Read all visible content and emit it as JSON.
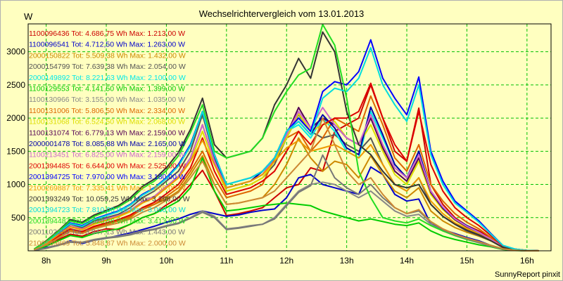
{
  "chart_data": {
    "type": "line",
    "title": "Wechselrichtervergleich vom 13.01.2013",
    "ylabel": "W",
    "credit": "SunnyReport pinxit",
    "x_ticks": [
      "8h",
      "9h",
      "10h",
      "11h",
      "12h",
      "13h",
      "14h",
      "15h",
      "16h"
    ],
    "y_ticks": [
      500,
      1000,
      1500,
      2000,
      2500,
      3000
    ],
    "xlim": [
      7.7,
      16.4
    ],
    "ylim": [
      0,
      3420
    ],
    "grid": true,
    "legend_position": "top-left",
    "x": [
      7.8,
      8.0,
      8.2,
      8.4,
      8.6,
      8.8,
      9.0,
      9.2,
      9.4,
      9.6,
      9.8,
      10.0,
      10.2,
      10.4,
      10.6,
      10.8,
      11.0,
      11.2,
      11.4,
      11.6,
      11.8,
      12.0,
      12.2,
      12.4,
      12.6,
      12.8,
      13.0,
      13.2,
      13.4,
      13.6,
      13.8,
      14.0,
      14.2,
      14.4,
      14.6,
      14.8,
      15.0,
      15.2,
      15.4,
      15.6,
      15.8,
      16.0,
      16.2
    ],
    "series": [
      {
        "name": "1100096436 Tot: 4.686,75 Wh Max: 1.213,00 W",
        "color": "#cc0000",
        "values": [
          15,
          80,
          170,
          250,
          220,
          290,
          330,
          320,
          400,
          500,
          560,
          690,
          800,
          1000,
          1213,
          900,
          530,
          560,
          600,
          650,
          800,
          950,
          1000,
          1250,
          1200,
          1800,
          1900,
          2000,
          2500,
          2000,
          1500,
          1350,
          2150,
          1000,
          700,
          500,
          380,
          300,
          200,
          50,
          20,
          5,
          0
        ]
      },
      {
        "name": "1100096541 Tot: 4.712,50 Wh Max: 1.263,00 W",
        "color": "#0000cc",
        "values": [
          15,
          50,
          80,
          150,
          110,
          160,
          190,
          230,
          270,
          320,
          370,
          430,
          480,
          550,
          600,
          560,
          520,
          540,
          580,
          610,
          630,
          800,
          1100,
          1150,
          1000,
          950,
          900,
          850,
          1263,
          1150,
          850,
          750,
          780,
          400,
          320,
          260,
          200,
          150,
          80,
          30,
          10,
          0,
          0
        ]
      },
      {
        "name": "2000150822 Tot: 5.509,38 Wh Max: 1.432,00 W",
        "color": "#cc8800",
        "values": [
          15,
          90,
          200,
          300,
          260,
          340,
          380,
          420,
          500,
          650,
          700,
          780,
          900,
          1150,
          1432,
          1000,
          700,
          720,
          760,
          800,
          1000,
          1300,
          1700,
          1400,
          1200,
          1350,
          1300,
          1100,
          1432,
          1150,
          900,
          800,
          950,
          600,
          450,
          350,
          280,
          220,
          150,
          50,
          20,
          5,
          0
        ]
      },
      {
        "name": "2000154799 Tot: 7.639,38 Wh Max: 2.054,00 W",
        "color": "#555555",
        "values": [
          15,
          120,
          250,
          400,
          350,
          450,
          500,
          550,
          650,
          800,
          900,
          1050,
          1200,
          1500,
          2054,
          1400,
          900,
          950,
          1000,
          1100,
          1300,
          1700,
          2054,
          1800,
          1700,
          1750,
          1600,
          1500,
          1700,
          1300,
          1000,
          900,
          1100,
          700,
          520,
          400,
          300,
          230,
          150,
          50,
          20,
          5,
          0
        ]
      },
      {
        "name": "2000149892 Tot: 8.221,63 Wh Max: 2.100,00 W",
        "color": "#00e8e8",
        "values": [
          20,
          130,
          270,
          420,
          380,
          480,
          540,
          600,
          700,
          850,
          950,
          1100,
          1300,
          1600,
          2100,
          1450,
          950,
          1000,
          1050,
          1200,
          1400,
          1800,
          1900,
          1700,
          2000,
          1800,
          1500,
          1400,
          2100,
          1700,
          1300,
          1100,
          1500,
          900,
          650,
          480,
          380,
          280,
          160,
          60,
          20,
          5,
          0
        ]
      },
      {
        "name": "1100129553 Tot: 4.141,50 Wh Max: 1.399,00 W",
        "color": "#00cc00",
        "values": [
          10,
          70,
          150,
          230,
          200,
          260,
          300,
          330,
          400,
          500,
          560,
          650,
          750,
          950,
          1399,
          900,
          600,
          620,
          650,
          680,
          700,
          720,
          700,
          680,
          600,
          550,
          500,
          450,
          480,
          440,
          400,
          380,
          420,
          300,
          220,
          170,
          130,
          90,
          60,
          20,
          5,
          0,
          0
        ]
      },
      {
        "name": "1100130966 Tot: 3.155,00 Wh Max: 1.035,00 W",
        "color": "#888888",
        "values": [
          5,
          40,
          90,
          140,
          130,
          170,
          200,
          220,
          250,
          300,
          330,
          380,
          420,
          500,
          600,
          520,
          330,
          350,
          380,
          400,
          500,
          700,
          900,
          1000,
          1035,
          1000,
          900,
          800,
          900,
          750,
          600,
          520,
          550,
          400,
          300,
          230,
          170,
          120,
          70,
          25,
          8,
          0,
          0
        ]
      },
      {
        "name": "1100131006 Tot: 5.806,50 Wh Max: 2.334,00 W",
        "color": "#dd6600",
        "values": [
          15,
          100,
          220,
          320,
          280,
          360,
          400,
          450,
          520,
          620,
          700,
          820,
          950,
          1200,
          1500,
          1100,
          800,
          850,
          900,
          1000,
          1400,
          1700,
          1800,
          1500,
          1700,
          2000,
          1900,
          1800,
          2334,
          1900,
          1400,
          1200,
          1600,
          1000,
          750,
          560,
          430,
          330,
          200,
          60,
          20,
          5,
          0
        ]
      },
      {
        "name": "1100131068 Tot: 6.524,50 Wh Max: 2.068,00 W",
        "color": "#dddd00",
        "values": [
          15,
          110,
          230,
          360,
          320,
          400,
          460,
          510,
          590,
          720,
          800,
          950,
          1100,
          1350,
          1800,
          1300,
          900,
          950,
          1000,
          1100,
          1350,
          1700,
          2068,
          1800,
          1900,
          1950,
          1700,
          1600,
          1900,
          1500,
          1150,
          1000,
          1350,
          850,
          620,
          460,
          350,
          270,
          170,
          60,
          20,
          5,
          0
        ]
      },
      {
        "name": "1100131074 Tot: 6.779,13 Wh Max: 2.159,00 W",
        "color": "#550055",
        "values": [
          15,
          110,
          240,
          370,
          330,
          420,
          480,
          530,
          610,
          740,
          820,
          970,
          1120,
          1400,
          1900,
          1350,
          950,
          1000,
          1050,
          1150,
          1400,
          1750,
          2159,
          1850,
          2000,
          1900,
          1700,
          1600,
          2000,
          1550,
          1200,
          1050,
          1400,
          880,
          640,
          470,
          360,
          280,
          170,
          60,
          20,
          5,
          0
        ]
      },
      {
        "name": "2000001478 Tot: 8.085,88 Wh Max: 2.165,00 W",
        "color": "#0000aa",
        "values": [
          20,
          130,
          270,
          410,
          370,
          470,
          530,
          590,
          690,
          840,
          940,
          1090,
          1280,
          1580,
          2100,
          1440,
          950,
          1000,
          1050,
          1200,
          1400,
          1800,
          1950,
          1750,
          2050,
          1850,
          1550,
          1450,
          2165,
          1750,
          1300,
          1100,
          1500,
          900,
          650,
          480,
          380,
          280,
          160,
          60,
          20,
          5,
          0
        ]
      },
      {
        "name": "1100213451 Tot: 6.825,00 Wh Max: 2.159,00 W",
        "color": "#cc66cc",
        "values": [
          15,
          110,
          240,
          370,
          330,
          420,
          480,
          530,
          610,
          740,
          820,
          970,
          1120,
          1400,
          1900,
          1350,
          950,
          1000,
          1050,
          1150,
          1400,
          1750,
          2100,
          1850,
          2159,
          1900,
          1700,
          1600,
          2050,
          1600,
          1250,
          1100,
          1450,
          900,
          660,
          480,
          370,
          280,
          170,
          60,
          20,
          5,
          0
        ]
      },
      {
        "name": "2001394485 Tot: 6.644,00 Wh Max: 2.525,00 W",
        "color": "#dd0000",
        "values": [
          15,
          100,
          220,
          330,
          290,
          370,
          420,
          470,
          540,
          650,
          730,
          860,
          1000,
          1250,
          1700,
          1200,
          850,
          900,
          950,
          1050,
          1200,
          1500,
          1800,
          1600,
          1900,
          2000,
          2000,
          2100,
          2525,
          2000,
          1600,
          1350,
          2100,
          1300,
          900,
          650,
          500,
          380,
          230,
          70,
          25,
          5,
          0
        ]
      },
      {
        "name": "2001394725 Tot: 7.970,00 Wh Max: 3.180,00 W",
        "color": "#0000ff",
        "values": [
          20,
          130,
          270,
          420,
          380,
          480,
          540,
          600,
          700,
          850,
          950,
          1100,
          1300,
          1600,
          2100,
          1450,
          1000,
          1050,
          1100,
          1200,
          1400,
          1800,
          2000,
          1800,
          2400,
          2550,
          2500,
          2700,
          3180,
          2600,
          2300,
          2050,
          2620,
          1500,
          1050,
          750,
          600,
          450,
          260,
          80,
          25,
          5,
          0
        ]
      },
      {
        "name": "2100269887 Tot: 7.335,41 Wh Max: 1.665,00 W",
        "color": "#ee9900",
        "values": [
          15,
          110,
          240,
          360,
          320,
          410,
          460,
          520,
          600,
          720,
          800,
          950,
          1100,
          1350,
          1665,
          1300,
          950,
          1000,
          1050,
          1150,
          1350,
          1550,
          1665,
          1500,
          1550,
          1600,
          1500,
          1400,
          1600,
          1300,
          1000,
          900,
          1100,
          750,
          560,
          420,
          330,
          250,
          150,
          50,
          20,
          5,
          0
        ]
      },
      {
        "name": "2001393249 Tot: 10.059,25 Wh Max: 3.298,00 W",
        "color": "#333333",
        "values": [
          25,
          150,
          300,
          470,
          430,
          540,
          610,
          680,
          800,
          970,
          1080,
          1250,
          1480,
          1830,
          2300,
          1600,
          1400,
          1450,
          1500,
          1700,
          2200,
          2500,
          2900,
          2600,
          3298,
          3000,
          2100,
          1600,
          1450,
          1200,
          1000,
          950,
          1000,
          700,
          520,
          400,
          310,
          240,
          150,
          50,
          20,
          5,
          0
        ]
      },
      {
        "name": "2001394723 Tot: 7.810,00 Wh Max: 3.060,00 W",
        "color": "#00dddd",
        "values": [
          20,
          130,
          270,
          410,
          370,
          470,
          530,
          590,
          690,
          840,
          940,
          1090,
          1280,
          1580,
          2100,
          1440,
          1000,
          1050,
          1100,
          1200,
          1400,
          1800,
          1950,
          1750,
          2300,
          2450,
          2400,
          2600,
          3060,
          2500,
          2200,
          1950,
          2500,
          1450,
          1000,
          720,
          580,
          430,
          250,
          80,
          25,
          5,
          0
        ]
      },
      {
        "name": "2001394487 Tot: 8.520,56 Wh Max: 3.413,00 W",
        "color": "#22dd22",
        "values": [
          25,
          140,
          290,
          450,
          410,
          520,
          590,
          660,
          770,
          940,
          1050,
          1210,
          1430,
          1780,
          2200,
          1500,
          1400,
          1450,
          1500,
          1700,
          2100,
          2400,
          2650,
          2750,
          3413,
          3100,
          2300,
          1200,
          800,
          500,
          450,
          420,
          480,
          380,
          300,
          230,
          170,
          130,
          80,
          30,
          10,
          0,
          0
        ]
      },
      {
        "name": "2001102359 Tot: 3.947,13 Wh Max: 1.443,00 W",
        "color": "#777777",
        "values": [
          5,
          35,
          80,
          130,
          120,
          160,
          190,
          210,
          240,
          290,
          320,
          370,
          410,
          490,
          580,
          500,
          320,
          340,
          370,
          400,
          480,
          680,
          880,
          980,
          1443,
          1100,
          950,
          850,
          1000,
          800,
          650,
          560,
          600,
          430,
          320,
          240,
          180,
          130,
          75,
          25,
          8,
          0,
          0
        ]
      },
      {
        "name": "2100269869 Tot: 5.848,87 Wh Max: 2.000,00 W",
        "color": "#cc8833",
        "values": [
          15,
          90,
          190,
          290,
          260,
          330,
          380,
          420,
          480,
          580,
          650,
          760,
          880,
          1100,
          1350,
          1000,
          700,
          720,
          760,
          800,
          900,
          1100,
          1300,
          1500,
          2000,
          1600,
          1200,
          1000,
          1100,
          850,
          650,
          560,
          620,
          440,
          330,
          250,
          190,
          140,
          80,
          30,
          10,
          0,
          0
        ]
      }
    ]
  }
}
